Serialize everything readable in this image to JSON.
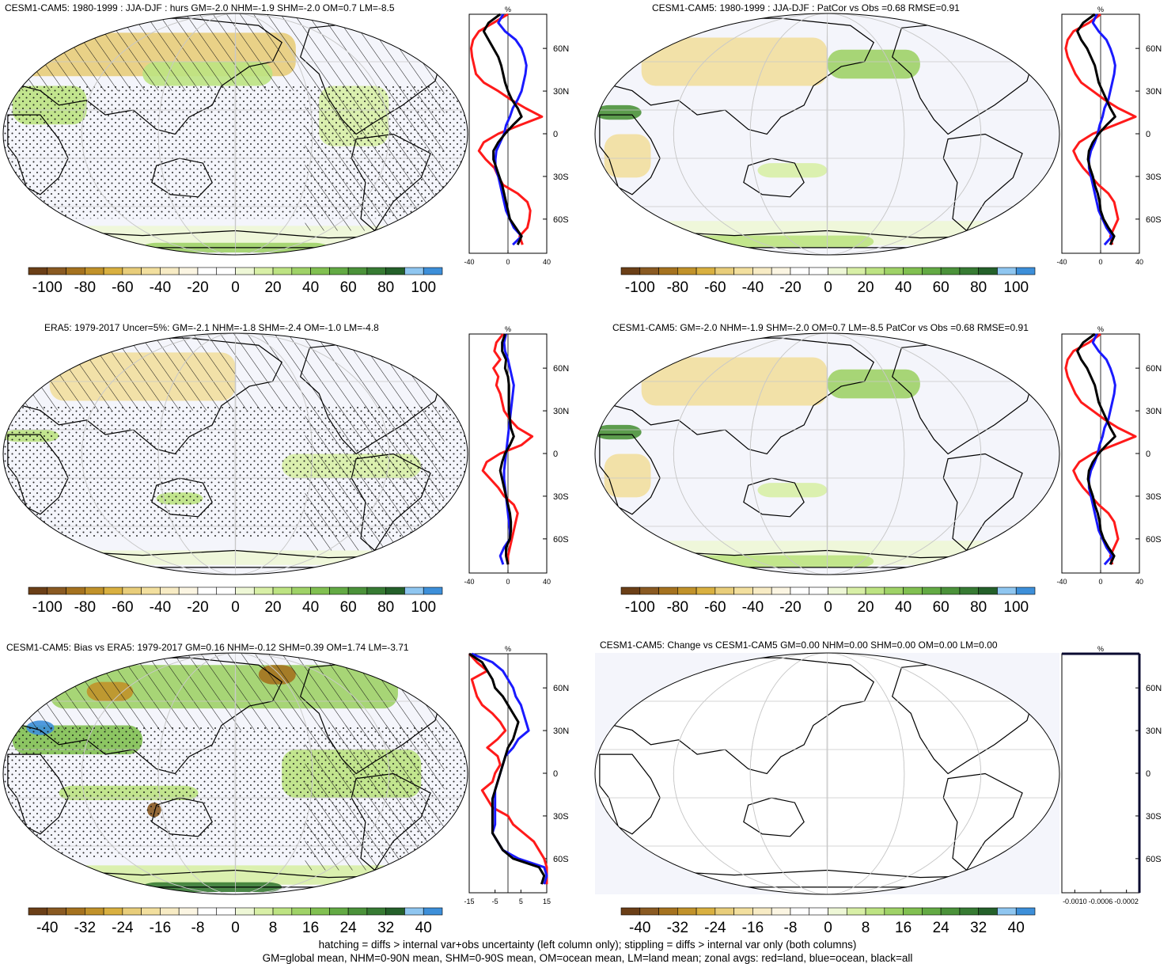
{
  "colors": {
    "red_land": "#ff1a1a",
    "blue_ocean": "#1a1aff",
    "black_all": "#000000",
    "graticule": "#c8c8c8",
    "ocean_bg": "#f4f5fb"
  },
  "colorbar_palette": [
    "#6b3f17",
    "#8a5a22",
    "#a5721f",
    "#c1922a",
    "#d9b040",
    "#e8cd7a",
    "#f2df9e",
    "#f7ebc4",
    "#fbf5e2",
    "#ffffff",
    "#ffffff",
    "#eef7d6",
    "#d8efa6",
    "#bde382",
    "#9fd267",
    "#81c051",
    "#63aa44",
    "#4b923a",
    "#377b33",
    "#24602a",
    "#8fc6f0",
    "#3d8fd9"
  ],
  "panels": [
    {
      "id": "p1",
      "title": "CESM1-CAM5: 1980-1999 : JJA-DJF : hurs GM=-2.0 NHM=-1.9 SHM=-2.0 OM=0.7 LM=-8.5",
      "hatch": true,
      "stipple": true,
      "variant": "a",
      "cb_labels": [
        "-100",
        "-80",
        "-60",
        "-40",
        "-20",
        "0",
        "20",
        "40",
        "60",
        "80",
        "100"
      ],
      "zonal_unit": "%",
      "zonal_xticks": [
        "-40",
        "0",
        "40"
      ],
      "zonal_yticks": [
        "60N",
        "30N",
        "0",
        "30S",
        "60S"
      ],
      "zonal_kind": "a"
    },
    {
      "id": "p2",
      "title": "CESM1-CAM5: 1980-1999 : JJA-DJF : PatCor vs Obs =0.68 RMSE=0.91",
      "hatch": false,
      "stipple": false,
      "variant": "b",
      "cb_labels": [
        "-100",
        "-80",
        "-60",
        "-40",
        "-20",
        "0",
        "20",
        "40",
        "60",
        "80",
        "100"
      ],
      "zonal_unit": "%",
      "zonal_xticks": [
        "-40",
        "0",
        "40"
      ],
      "zonal_yticks": [
        "60N",
        "30N",
        "0",
        "30S",
        "60S"
      ],
      "zonal_kind": "b"
    },
    {
      "id": "p3",
      "title": "ERA5: 1979-2017 Uncer=5%: GM=-2.1 NHM=-1.8 SHM=-2.4 OM=-1.0 LM=-4.8",
      "hatch": true,
      "stipple": true,
      "variant": "c",
      "cb_labels": [
        "-100",
        "-80",
        "-60",
        "-40",
        "-20",
        "0",
        "20",
        "40",
        "60",
        "80",
        "100"
      ],
      "zonal_unit": "%",
      "zonal_xticks": [
        "-40",
        "0",
        "40"
      ],
      "zonal_yticks": [
        "60N",
        "30N",
        "0",
        "30S",
        "60S"
      ],
      "zonal_kind": "c"
    },
    {
      "id": "p4",
      "title": "CESM1-CAM5: GM=-2.0 NHM=-1.9 SHM=-2.0 OM=0.7 LM=-8.5 PatCor vs Obs =0.68 RMSE=0.91",
      "hatch": false,
      "stipple": false,
      "variant": "b",
      "cb_labels": [
        "-100",
        "-80",
        "-60",
        "-40",
        "-20",
        "0",
        "20",
        "40",
        "60",
        "80",
        "100"
      ],
      "zonal_unit": "%",
      "zonal_xticks": [
        "-40",
        "0",
        "40"
      ],
      "zonal_yticks": [
        "60N",
        "30N",
        "0",
        "30S",
        "60S"
      ],
      "zonal_kind": "b"
    },
    {
      "id": "p5",
      "title": "CESM1-CAM5: Bias vs ERA5: 1979-2017 GM=0.16 NHM=-0.12 SHM=0.39 OM=1.74 LM=-3.71",
      "hatch": true,
      "stipple": true,
      "variant": "d",
      "cb_labels": [
        "-40",
        "-32",
        "-24",
        "-16",
        "-8",
        "0",
        "8",
        "16",
        "24",
        "32",
        "40"
      ],
      "zonal_unit": "%",
      "zonal_xticks": [
        "-15",
        "-5",
        "5",
        "15"
      ],
      "zonal_yticks": [
        "60N",
        "30N",
        "0",
        "30S",
        "60S"
      ],
      "zonal_kind": "d"
    },
    {
      "id": "p6",
      "title": "CESM1-CAM5: Change vs CESM1-CAM5 GM=0.00 NHM=0.00 SHM=0.00 OM=0.00 LM=0.00",
      "hatch": false,
      "stipple": false,
      "variant": "e",
      "cb_labels": [
        "-40",
        "-32",
        "-24",
        "-16",
        "-8",
        "0",
        "8",
        "16",
        "24",
        "32",
        "40"
      ],
      "zonal_unit": "%",
      "zonal_xticks": [
        "-0.0010",
        "-0.0006",
        "-0.0002"
      ],
      "zonal_yticks": [
        "60N",
        "30N",
        "0",
        "30S",
        "60S"
      ],
      "zonal_kind": "e"
    }
  ],
  "footer": {
    "line1": "hatching = diffs > internal var+obs uncertainty (left column only); stippling = diffs > internal var only (both columns)",
    "line2": "GM=global mean, NHM=0-90N mean, SHM=0-90S mean, OM=ocean mean, LM=land mean; zonal avgs: red=land, blue=ocean, black=all"
  },
  "chart_data": {
    "type": "map",
    "title": "",
    "maps": [
      {
        "panel": "p1",
        "colorbar_range": [
          -100,
          100
        ],
        "zonal_xlim": [
          -40,
          40
        ],
        "zonal_series": [
          {
            "name": "land",
            "color": "red"
          },
          {
            "name": "ocean",
            "color": "blue"
          },
          {
            "name": "all",
            "color": "black"
          }
        ]
      },
      {
        "panel": "p2",
        "colorbar_range": [
          -100,
          100
        ],
        "zonal_xlim": [
          -40,
          40
        ]
      },
      {
        "panel": "p3",
        "colorbar_range": [
          -100,
          100
        ],
        "zonal_xlim": [
          -40,
          40
        ]
      },
      {
        "panel": "p4",
        "colorbar_range": [
          -100,
          100
        ],
        "zonal_xlim": [
          -40,
          40
        ]
      },
      {
        "panel": "p5",
        "colorbar_range": [
          -40,
          40
        ],
        "zonal_xlim": [
          -15,
          15
        ]
      },
      {
        "panel": "p6",
        "colorbar_range": [
          -40,
          40
        ],
        "zonal_xlim": [
          -0.0012,
          0
        ]
      }
    ],
    "zonal_profiles": {
      "lat": [
        84,
        78,
        72,
        66,
        60,
        54,
        48,
        42,
        36,
        30,
        24,
        18,
        12,
        6,
        0,
        -6,
        -12,
        -18,
        -24,
        -30,
        -36,
        -42,
        -48,
        -54,
        -60,
        -66,
        -72,
        -78
      ],
      "a": {
        "land": [
          0,
          -15,
          -30,
          -36,
          -38,
          -37,
          -35,
          -33,
          -25,
          -10,
          3,
          18,
          35,
          12,
          -10,
          -25,
          -30,
          -23,
          -14,
          -10,
          -5,
          10,
          20,
          23,
          22,
          20,
          12,
          15
        ],
        "ocean": [
          -5,
          -10,
          -3,
          8,
          14,
          17,
          19,
          18,
          16,
          14,
          10,
          5,
          2,
          -2,
          -4,
          -8,
          -12,
          -13,
          -13,
          -10,
          -8,
          -6,
          -4,
          -2,
          2,
          6,
          14,
          5
        ],
        "all": [
          -8,
          -20,
          -25,
          -20,
          -15,
          -10,
          -7,
          -5,
          -3,
          0,
          4,
          10,
          14,
          5,
          -3,
          -10,
          -15,
          -15,
          -12,
          -9,
          -6,
          -4,
          -2,
          0,
          2,
          8,
          14,
          10
        ]
      },
      "b": {
        "land": [
          0,
          -12,
          -28,
          -34,
          -36,
          -34,
          -30,
          -26,
          -20,
          -8,
          4,
          18,
          36,
          14,
          -8,
          -22,
          -28,
          -24,
          -18,
          -10,
          -2,
          8,
          14,
          16,
          18,
          14,
          10,
          12
        ],
        "ocean": [
          -4,
          -8,
          -2,
          6,
          10,
          13,
          15,
          14,
          12,
          10,
          8,
          4,
          2,
          -1,
          -3,
          -6,
          -10,
          -12,
          -12,
          -10,
          -8,
          -6,
          -4,
          -2,
          2,
          6,
          12,
          4
        ],
        "all": [
          -6,
          -18,
          -24,
          -20,
          -14,
          -10,
          -6,
          -4,
          -2,
          2,
          6,
          10,
          15,
          6,
          -2,
          -8,
          -12,
          -13,
          -11,
          -8,
          -6,
          -3,
          -1,
          0,
          3,
          8,
          14,
          10
        ]
      },
      "c": {
        "land": [
          -5,
          -12,
          -14,
          -8,
          -15,
          -10,
          -12,
          -8,
          -6,
          -4,
          2,
          10,
          25,
          14,
          -8,
          -22,
          -26,
          -18,
          -10,
          -4,
          6,
          10,
          8,
          6,
          4,
          2,
          0,
          0
        ],
        "ocean": [
          -2,
          -4,
          -3,
          0,
          2,
          4,
          6,
          5,
          4,
          3,
          2,
          1,
          0,
          -1,
          -2,
          -3,
          -4,
          -4,
          -3,
          -2,
          -1,
          0,
          1,
          2,
          2,
          -4,
          -8,
          -5
        ],
        "all": [
          -3,
          -6,
          -6,
          -2,
          -3,
          0,
          1,
          1,
          1,
          1,
          2,
          3,
          6,
          2,
          -3,
          -6,
          -8,
          -6,
          -4,
          -2,
          0,
          2,
          3,
          3,
          2,
          -2,
          -2,
          0
        ]
      },
      "d": {
        "land": [
          -15,
          -12,
          -8,
          -14,
          -13,
          -12,
          -10,
          -6,
          -3,
          -1,
          -4,
          -8,
          -4,
          -3,
          -5,
          -6,
          -10,
          -8,
          -6,
          0,
          2,
          6,
          10,
          12,
          14,
          16,
          18,
          15
        ],
        "ocean": [
          -14,
          -6,
          -2,
          0,
          2,
          3,
          5,
          6,
          7,
          8,
          4,
          2,
          -1,
          -2,
          -3,
          -4,
          -5,
          -5,
          -5,
          -5,
          -5,
          -6,
          -4,
          -2,
          4,
          14,
          16,
          14
        ],
        "all": [
          -15,
          -10,
          -8,
          -6,
          -5,
          -2,
          0,
          2,
          4,
          3,
          2,
          0,
          -1,
          -2,
          -3,
          -4,
          -5,
          -6,
          -6,
          -6,
          -6,
          -6,
          -4,
          -2,
          2,
          12,
          14,
          13
        ]
      }
    }
  }
}
